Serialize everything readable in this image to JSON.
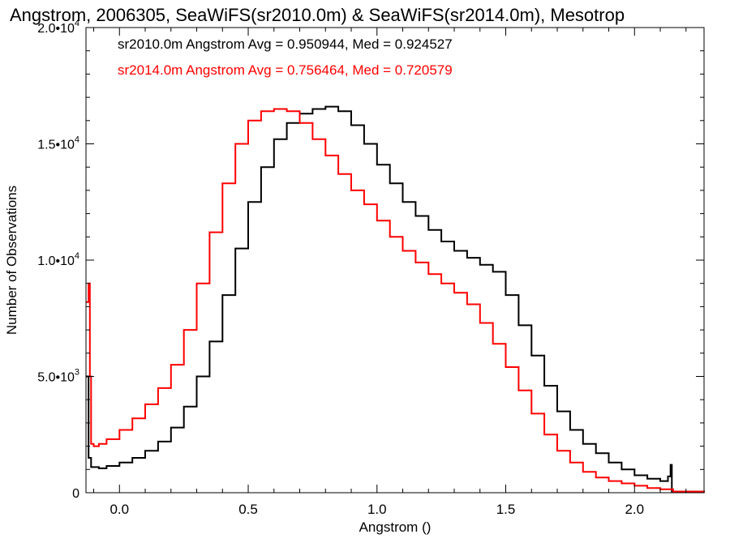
{
  "chart_data": {
    "type": "line",
    "step": true,
    "title": "Angstrom, 2006305, SeaWiFS(sr2010.0m) & SeaWiFS(sr2014.0m), Mesotrop",
    "xlabel": "Angstrom ()",
    "ylabel": "Number of Observations",
    "xlim": [
      -0.13,
      2.27
    ],
    "ylim": [
      0,
      20000
    ],
    "x_ticks": [
      {
        "value": 0.0,
        "label": "0.0"
      },
      {
        "value": 0.5,
        "label": "0.5"
      },
      {
        "value": 1.0,
        "label": "1.0"
      },
      {
        "value": 1.5,
        "label": "1.5"
      },
      {
        "value": 2.0,
        "label": "2.0"
      }
    ],
    "y_ticks": [
      {
        "value": 0,
        "mantissa": "0",
        "exp": ""
      },
      {
        "value": 5000,
        "mantissa": "5.0•10",
        "exp": "3"
      },
      {
        "value": 10000,
        "mantissa": "1.0•10",
        "exp": "4"
      },
      {
        "value": 15000,
        "mantissa": "1.5•10",
        "exp": "4"
      },
      {
        "value": 20000,
        "mantissa": "2.0•10",
        "exp": "4"
      }
    ],
    "grid": false,
    "series": [
      {
        "name": "sr2010.0m",
        "color": "#000000",
        "annotation": "sr2010.0m Angstrom Avg = 0.950944, Med = 0.924527",
        "points": [
          [
            -0.13,
            5000
          ],
          [
            -0.12,
            1500
          ],
          [
            -0.11,
            1100
          ],
          [
            -0.08,
            1050
          ],
          [
            -0.05,
            1150
          ],
          [
            0.0,
            1300
          ],
          [
            0.05,
            1500
          ],
          [
            0.1,
            1800
          ],
          [
            0.15,
            2200
          ],
          [
            0.2,
            2800
          ],
          [
            0.25,
            3700
          ],
          [
            0.3,
            5000
          ],
          [
            0.35,
            6500
          ],
          [
            0.4,
            8500
          ],
          [
            0.45,
            10500
          ],
          [
            0.5,
            12500
          ],
          [
            0.55,
            14000
          ],
          [
            0.6,
            15200
          ],
          [
            0.65,
            15900
          ],
          [
            0.7,
            16300
          ],
          [
            0.75,
            16500
          ],
          [
            0.8,
            16600
          ],
          [
            0.85,
            16400
          ],
          [
            0.9,
            15800
          ],
          [
            0.95,
            15000
          ],
          [
            1.0,
            14100
          ],
          [
            1.05,
            13300
          ],
          [
            1.1,
            12500
          ],
          [
            1.15,
            11900
          ],
          [
            1.2,
            11300
          ],
          [
            1.25,
            10800
          ],
          [
            1.3,
            10400
          ],
          [
            1.35,
            10100
          ],
          [
            1.4,
            9800
          ],
          [
            1.45,
            9500
          ],
          [
            1.5,
            8500
          ],
          [
            1.55,
            7200
          ],
          [
            1.6,
            5900
          ],
          [
            1.65,
            4600
          ],
          [
            1.7,
            3500
          ],
          [
            1.75,
            2700
          ],
          [
            1.8,
            2100
          ],
          [
            1.85,
            1700
          ],
          [
            1.9,
            1300
          ],
          [
            1.95,
            1000
          ],
          [
            2.0,
            750
          ],
          [
            2.05,
            600
          ],
          [
            2.1,
            500
          ],
          [
            2.13,
            700
          ],
          [
            2.14,
            1200
          ],
          [
            2.145,
            50
          ],
          [
            2.27,
            0
          ]
        ]
      },
      {
        "name": "sr2014.0m",
        "color": "#ff0000",
        "annotation": "sr2014.0m Angstrom Avg = 0.756464, Med = 0.720579",
        "points": [
          [
            -0.13,
            8200
          ],
          [
            -0.12,
            9000
          ],
          [
            -0.115,
            5000
          ],
          [
            -0.11,
            2100
          ],
          [
            -0.1,
            2000
          ],
          [
            -0.08,
            2100
          ],
          [
            -0.05,
            2300
          ],
          [
            0.0,
            2700
          ],
          [
            0.05,
            3200
          ],
          [
            0.1,
            3800
          ],
          [
            0.15,
            4500
          ],
          [
            0.2,
            5500
          ],
          [
            0.25,
            7000
          ],
          [
            0.3,
            9000
          ],
          [
            0.35,
            11200
          ],
          [
            0.4,
            13300
          ],
          [
            0.45,
            15000
          ],
          [
            0.5,
            16000
          ],
          [
            0.55,
            16400
          ],
          [
            0.6,
            16500
          ],
          [
            0.65,
            16400
          ],
          [
            0.7,
            15900
          ],
          [
            0.75,
            15200
          ],
          [
            0.8,
            14500
          ],
          [
            0.85,
            13700
          ],
          [
            0.9,
            13000
          ],
          [
            0.95,
            12400
          ],
          [
            1.0,
            11700
          ],
          [
            1.05,
            11000
          ],
          [
            1.1,
            10400
          ],
          [
            1.15,
            9900
          ],
          [
            1.2,
            9400
          ],
          [
            1.25,
            9000
          ],
          [
            1.3,
            8600
          ],
          [
            1.35,
            8100
          ],
          [
            1.4,
            7300
          ],
          [
            1.45,
            6400
          ],
          [
            1.5,
            5400
          ],
          [
            1.55,
            4400
          ],
          [
            1.6,
            3400
          ],
          [
            1.65,
            2500
          ],
          [
            1.7,
            1800
          ],
          [
            1.75,
            1300
          ],
          [
            1.8,
            900
          ],
          [
            1.85,
            650
          ],
          [
            1.9,
            500
          ],
          [
            1.95,
            400
          ],
          [
            2.0,
            300
          ],
          [
            2.05,
            200
          ],
          [
            2.1,
            150
          ],
          [
            2.15,
            50
          ],
          [
            2.27,
            0
          ]
        ]
      }
    ]
  }
}
